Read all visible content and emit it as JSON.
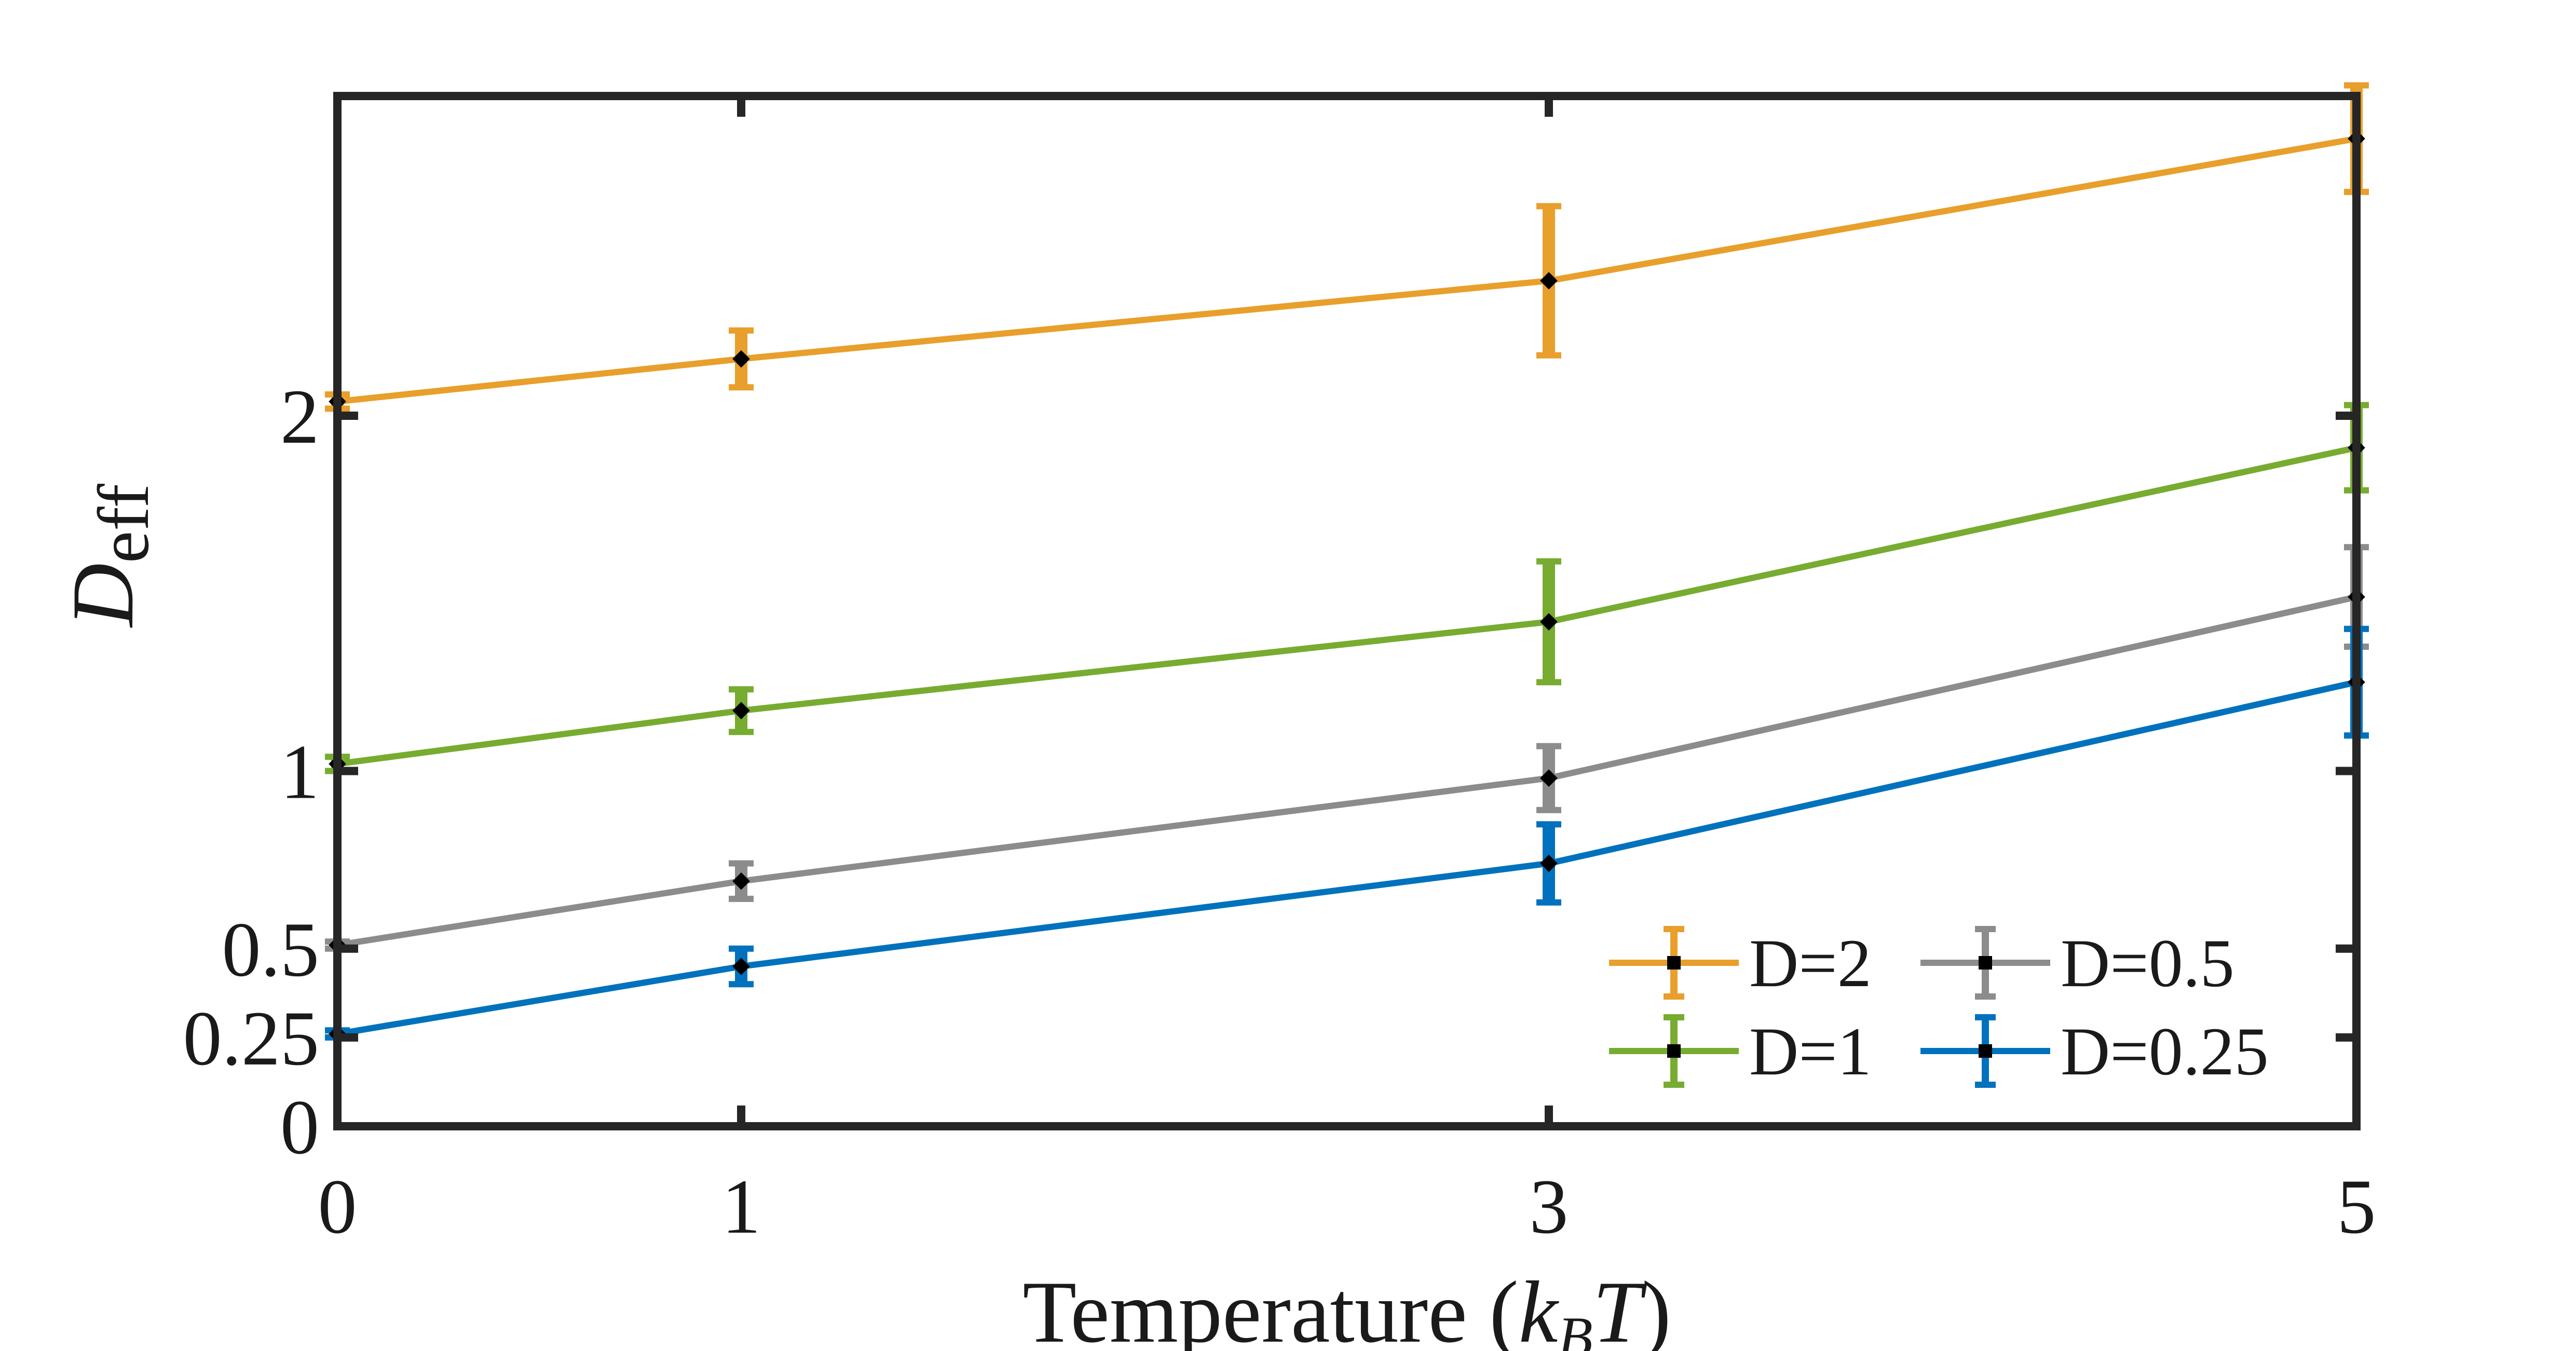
{
  "chart_data": {
    "type": "line",
    "xlabel_main": "Temperature (",
    "xlabel_k": "k",
    "xlabel_sub": "B",
    "xlabel_t": "T",
    "xlabel_close": ")",
    "ylabel_main": "D",
    "ylabel_sub": "eff",
    "x": [
      0,
      1,
      3,
      5
    ],
    "xlim": [
      0,
      5
    ],
    "ylim": [
      0,
      2.9
    ],
    "xticks": [
      "0",
      "1",
      "3",
      "5"
    ],
    "xtick_values": [
      0,
      1,
      3,
      5
    ],
    "yticks": [
      "0",
      "0.25",
      "0.5",
      "1",
      "2"
    ],
    "ytick_values": [
      0,
      0.25,
      0.5,
      1,
      2
    ],
    "grid": false,
    "legend_position": "bottom-right",
    "series": [
      {
        "name": "D=2",
        "color": "#E89F2B",
        "values": [
          2.04,
          2.16,
          2.38,
          2.78
        ],
        "errors": [
          0.02,
          0.08,
          0.21,
          0.15
        ]
      },
      {
        "name": "D=1",
        "color": "#77AC30",
        "values": [
          1.02,
          1.17,
          1.42,
          1.91
        ],
        "errors": [
          0.02,
          0.06,
          0.17,
          0.12
        ]
      },
      {
        "name": "D=0.5",
        "color": "#8C8C8C",
        "values": [
          0.51,
          0.69,
          0.98,
          1.49
        ],
        "errors": [
          0.01,
          0.05,
          0.09,
          0.14
        ]
      },
      {
        "name": "D=0.25",
        "color": "#0072BD",
        "values": [
          0.26,
          0.45,
          0.74,
          1.25
        ],
        "errors": [
          0.01,
          0.05,
          0.11,
          0.15
        ]
      }
    ]
  }
}
